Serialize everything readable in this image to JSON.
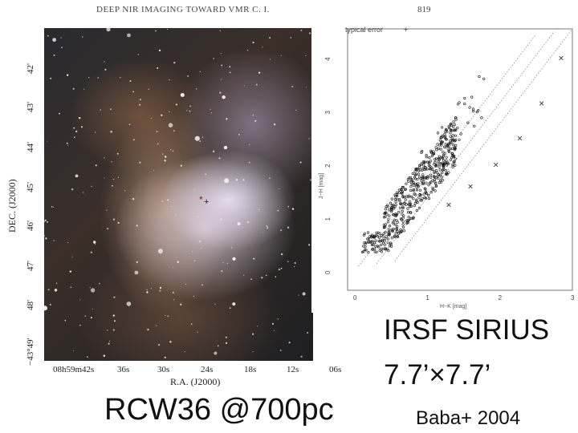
{
  "header": {
    "title": "DEEP NIR IMAGING TOWARD VMR C. I.",
    "page_number": "819"
  },
  "image": {
    "dec_axis_title": "DEC. (J2000)",
    "ra_axis_title": "R.A. (J2000)",
    "dec_ticks": [
      "42'",
      "43'",
      "44'",
      "45'",
      "46'",
      "47'",
      "48'",
      "−43°49'"
    ],
    "ra_ticks": [
      "08h59m42s",
      "36s",
      "30s",
      "24s",
      "18s",
      "12s",
      "06s"
    ]
  },
  "chart_data": {
    "type": "scatter",
    "xlabel": "H−K [mag]",
    "ylabel": "J−H [mag]",
    "xlim": [
      -0.1,
      3
    ],
    "ylim": [
      -0.3,
      4.6
    ],
    "x_ticks": [
      "0",
      "1",
      "2",
      "3"
    ],
    "y_ticks": [
      "0",
      "1",
      "2",
      "3",
      "4"
    ],
    "legend": "typical error",
    "series": [
      {
        "marker": "x",
        "values": [
          [
            1.3,
            1.3
          ],
          [
            1.6,
            1.65
          ],
          [
            1.95,
            2.05
          ],
          [
            2.28,
            2.55
          ],
          [
            2.58,
            3.2
          ],
          [
            2.85,
            4.05
          ]
        ]
      }
    ]
  },
  "captions": {
    "object": "RCW36   @700pc",
    "instrument": "IRSF  SIRIUS",
    "fov": "7.7’×7.7’",
    "reference": "Baba+  2004"
  },
  "colors": {
    "nebula_dark": "#2a2a2f",
    "nebula_light": "#e8e0f0",
    "text": "#111111"
  }
}
